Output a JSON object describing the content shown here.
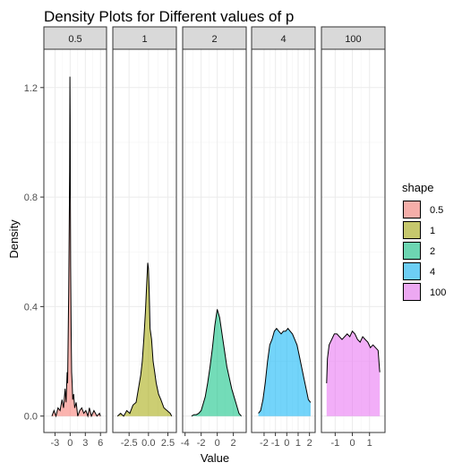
{
  "chart_data": {
    "type": "area",
    "title": "Density Plots for Different values of p",
    "xlabel": "Value",
    "ylabel": "Density",
    "ylim": [
      -0.06,
      1.34
    ],
    "yticks": [
      0.0,
      0.4,
      0.8,
      1.2
    ],
    "ytick_labels": [
      "0.0",
      "0.4",
      "0.8",
      "1.2"
    ],
    "grid": true,
    "theme": "bw",
    "legend": {
      "title": "shape",
      "placement": "right",
      "entries": [
        "0.5",
        "1",
        "2",
        "4",
        "100"
      ]
    },
    "colors": [
      "#F8766D",
      "#A3A500",
      "#00BF7D",
      "#00B0F6",
      "#E76BF3"
    ],
    "fill_alpha": 0.55,
    "facets": [
      {
        "label": "0.5",
        "xlim": [
          -5.2,
          7.2
        ],
        "xticks": [
          -3,
          0,
          3,
          6
        ],
        "xtick_labels": [
          "-3",
          "0",
          "3",
          "6"
        ],
        "x": [
          -3.6,
          -3.2,
          -2.8,
          -2.4,
          -2.0,
          -1.6,
          -1.3,
          -1.0,
          -0.8,
          -0.6,
          -0.5,
          -0.4,
          -0.3,
          -0.2,
          -0.1,
          -0.05,
          0.0,
          0.05,
          0.1,
          0.2,
          0.3,
          0.4,
          0.5,
          0.7,
          0.9,
          1.2,
          1.5,
          1.9,
          2.3,
          2.7,
          3.1,
          3.5,
          3.8,
          4.2,
          4.7,
          5.3,
          5.8,
          6.0
        ],
        "y": [
          0.0,
          0.02,
          0.0,
          0.03,
          0.02,
          0.06,
          0.03,
          0.1,
          0.05,
          0.16,
          0.12,
          0.28,
          0.45,
          0.65,
          0.9,
          1.24,
          1.08,
          0.8,
          0.55,
          0.3,
          0.16,
          0.12,
          0.06,
          0.08,
          0.03,
          0.05,
          0.0,
          0.02,
          0.03,
          0.01,
          0.02,
          0.0,
          0.03,
          0.0,
          0.02,
          0.0,
          0.01,
          0.0
        ]
      },
      {
        "label": "1",
        "xlim": [
          -4.6,
          3.6
        ],
        "xticks": [
          -2.5,
          0.0,
          2.5
        ],
        "xtick_labels": [
          "-2.5",
          "0.0",
          "2.5"
        ],
        "x": [
          -4.0,
          -3.6,
          -3.2,
          -2.8,
          -2.4,
          -2.0,
          -1.6,
          -1.3,
          -1.0,
          -0.8,
          -0.6,
          -0.4,
          -0.2,
          -0.1,
          0.0,
          0.1,
          0.2,
          0.4,
          0.6,
          0.8,
          1.0,
          1.3,
          1.6,
          2.0,
          2.4,
          2.8,
          3.0
        ],
        "y": [
          0.0,
          0.01,
          0.0,
          0.02,
          0.01,
          0.04,
          0.05,
          0.1,
          0.15,
          0.2,
          0.28,
          0.38,
          0.5,
          0.56,
          0.54,
          0.45,
          0.32,
          0.28,
          0.2,
          0.16,
          0.12,
          0.08,
          0.06,
          0.03,
          0.02,
          0.01,
          0.0
        ]
      },
      {
        "label": "2",
        "xlim": [
          -4.3,
          3.6
        ],
        "xticks": [
          -4,
          -2,
          0,
          2
        ],
        "xtick_labels": [
          "-4",
          "-2",
          "0",
          "2"
        ],
        "x": [
          -3.2,
          -2.9,
          -2.6,
          -2.3,
          -2.0,
          -1.8,
          -1.5,
          -1.2,
          -0.9,
          -0.6,
          -0.3,
          0.0,
          0.3,
          0.6,
          0.9,
          1.2,
          1.5,
          1.8,
          2.1,
          2.4,
          2.7,
          3.0
        ],
        "y": [
          0.0,
          0.005,
          0.005,
          0.01,
          0.02,
          0.04,
          0.07,
          0.12,
          0.18,
          0.25,
          0.33,
          0.39,
          0.36,
          0.3,
          0.24,
          0.18,
          0.14,
          0.1,
          0.07,
          0.04,
          0.01,
          0.0
        ]
      },
      {
        "label": "4",
        "xlim": [
          -3.1,
          2.5
        ],
        "xticks": [
          -2,
          -1,
          0,
          1,
          2
        ],
        "xtick_labels": [
          "-2",
          "-1",
          "0",
          "1",
          "2"
        ],
        "x": [
          -2.5,
          -2.3,
          -2.1,
          -1.9,
          -1.7,
          -1.5,
          -1.3,
          -1.1,
          -0.9,
          -0.7,
          -0.5,
          -0.3,
          -0.1,
          0.1,
          0.3,
          0.5,
          0.7,
          0.9,
          1.1,
          1.3,
          1.5,
          1.7,
          1.9,
          2.1
        ],
        "y": [
          0.01,
          0.02,
          0.06,
          0.12,
          0.2,
          0.26,
          0.28,
          0.31,
          0.32,
          0.31,
          0.3,
          0.31,
          0.31,
          0.32,
          0.31,
          0.3,
          0.28,
          0.26,
          0.22,
          0.18,
          0.14,
          0.1,
          0.06,
          0.05
        ]
      },
      {
        "label": "100",
        "xlim": [
          -1.8,
          1.9
        ],
        "xticks": [
          -1,
          0,
          1
        ],
        "xtick_labels": [
          "-1",
          "0",
          "1"
        ],
        "x": [
          -1.5,
          -1.45,
          -1.35,
          -1.2,
          -1.05,
          -0.9,
          -0.75,
          -0.6,
          -0.45,
          -0.3,
          -0.15,
          0.0,
          0.15,
          0.3,
          0.45,
          0.6,
          0.75,
          0.9,
          1.05,
          1.2,
          1.35,
          1.5,
          1.58,
          1.6
        ],
        "y": [
          0.12,
          0.21,
          0.26,
          0.28,
          0.3,
          0.3,
          0.29,
          0.28,
          0.29,
          0.3,
          0.29,
          0.31,
          0.3,
          0.28,
          0.27,
          0.29,
          0.28,
          0.27,
          0.25,
          0.26,
          0.25,
          0.24,
          0.17,
          0.16
        ]
      }
    ]
  }
}
